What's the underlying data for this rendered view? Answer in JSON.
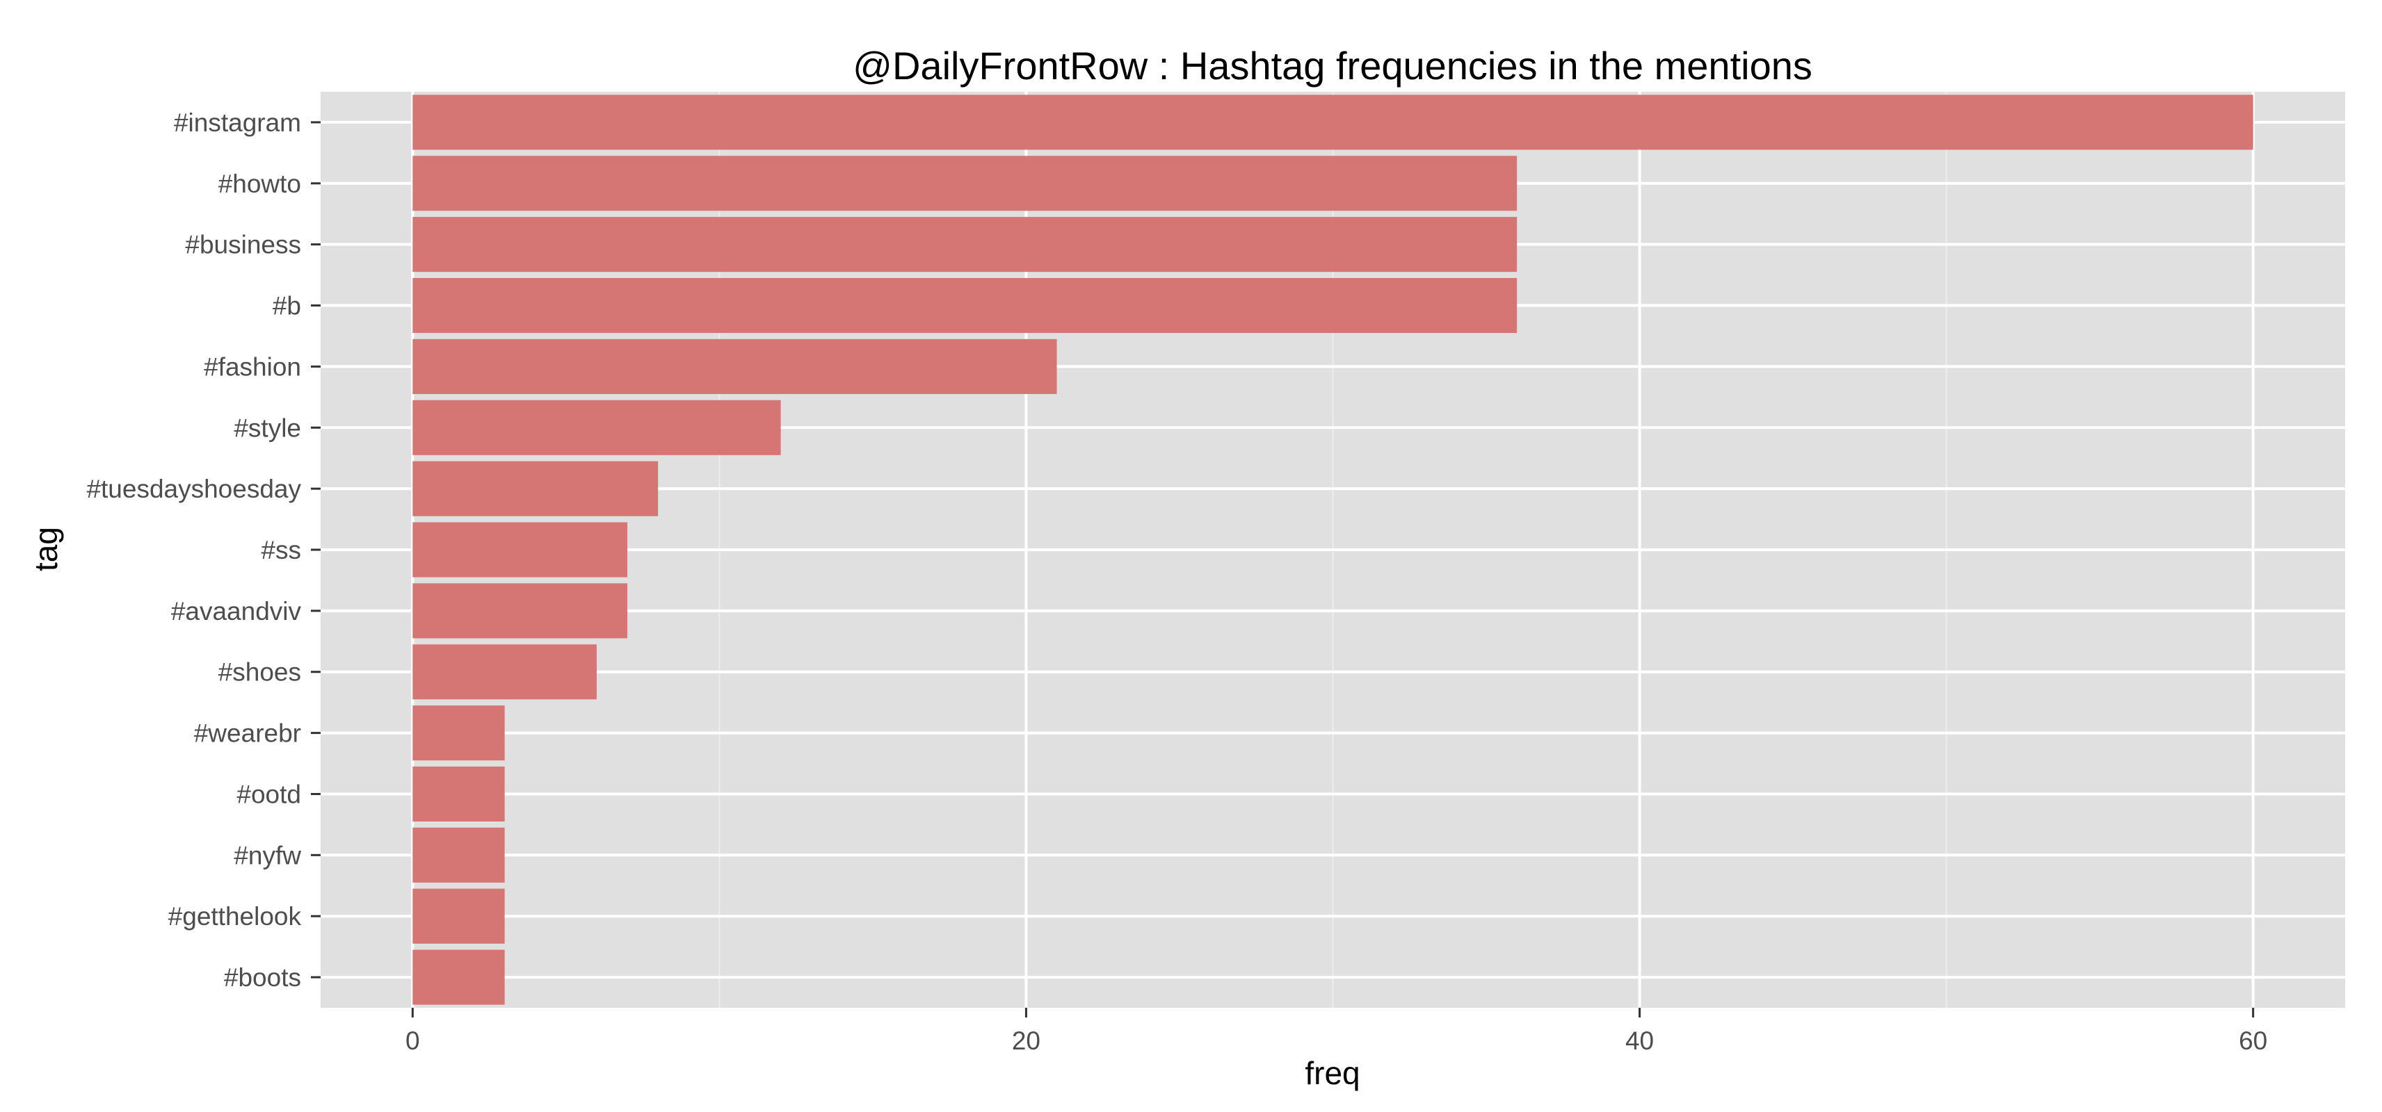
{
  "chart_data": {
    "type": "bar",
    "orientation": "horizontal",
    "title": "@DailyFrontRow : Hashtag frequencies in the mentions",
    "xlabel": "freq",
    "ylabel": "tag",
    "xlim": [
      -3,
      63
    ],
    "x_ticks": [
      0,
      20,
      40,
      60
    ],
    "x_minor_ticks": [
      10,
      30,
      50
    ],
    "grid": true,
    "categories": [
      "#instagram",
      "#howto",
      "#business",
      "#b",
      "#fashion",
      "#style",
      "#tuesdayshoesday",
      "#ss",
      "#avaandviv",
      "#shoes",
      "#wearebr",
      "#ootd",
      "#nyfw",
      "#getthelook",
      "#boots"
    ],
    "values": [
      60,
      36,
      36,
      36,
      21,
      12,
      8,
      7,
      7,
      6,
      3,
      3,
      3,
      3,
      3
    ],
    "colors": {
      "bar": "#d57574",
      "panel": "#e0e0e0",
      "grid": "#ffffff",
      "tick_text": "#4d4d4d"
    }
  }
}
